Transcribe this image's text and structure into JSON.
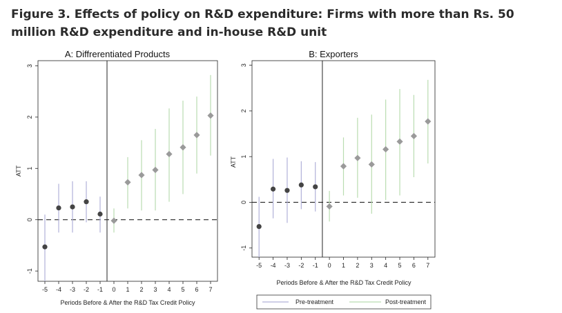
{
  "figure": {
    "title": "Figure 3. Effects of policy on R&D expenditure: Firms with more than Rs. 50 million R&D expenditure and in-house R&D unit"
  },
  "legend": {
    "pre_label": "Pre-treatment",
    "post_label": "Post-treatment",
    "pre_color": "#b0b0d8",
    "post_color": "#b9dcb0"
  },
  "chart_data": [
    {
      "type": "scatter",
      "title": "A: Diffrerentiated Products",
      "xlabel": "Periods Before & After the R&D Tax Credit Policy",
      "ylabel": "ATT",
      "x": [
        -5,
        -4,
        -3,
        -2,
        -1,
        0,
        1,
        2,
        3,
        4,
        5,
        6,
        7
      ],
      "xlim": [
        -5.5,
        7.5
      ],
      "ylim": [
        -1.2,
        3.1
      ],
      "yticks": [
        -1,
        0,
        1,
        2,
        3
      ],
      "reference_line_y": 0,
      "policy_line_x": -0.5,
      "series": [
        {
          "name": "Pre-treatment",
          "x": [
            -5,
            -4,
            -3,
            -2,
            -1
          ],
          "values": [
            -0.53,
            0.23,
            0.25,
            0.35,
            0.11
          ],
          "ci_low": [
            -1.2,
            -0.25,
            -0.25,
            -0.05,
            -0.25
          ],
          "ci_high": [
            0.1,
            0.7,
            0.75,
            0.75,
            0.45
          ]
        },
        {
          "name": "Post-treatment",
          "x": [
            0,
            1,
            2,
            3,
            4,
            5,
            6,
            7
          ],
          "values": [
            -0.02,
            0.73,
            0.87,
            0.97,
            1.28,
            1.41,
            1.65,
            2.03
          ],
          "ci_low": [
            -0.25,
            0.22,
            0.18,
            0.18,
            0.35,
            0.5,
            0.9,
            1.25
          ],
          "ci_high": [
            0.22,
            1.22,
            1.55,
            1.77,
            2.17,
            2.32,
            2.4,
            2.82
          ]
        }
      ],
      "x_tick_labels": [
        "-5",
        "-4",
        "-3",
        "-2",
        "-1",
        "0",
        "1",
        "2",
        "3",
        "4",
        "5",
        "6",
        "7"
      ],
      "y_tick_labels": [
        "-1",
        "0",
        "1",
        "2",
        "3"
      ]
    },
    {
      "type": "scatter",
      "title": "B: Exporters",
      "xlabel": "Periods Before & After the R&D Tax Credit Policy",
      "ylabel": "ATT",
      "x": [
        -5,
        -4,
        -3,
        -2,
        -1,
        0,
        1,
        2,
        3,
        4,
        5,
        6,
        7
      ],
      "xlim": [
        -5.5,
        7.5
      ],
      "ylim": [
        -1.2,
        3.1
      ],
      "yticks": [
        -1,
        0,
        1,
        2,
        3
      ],
      "reference_line_y": 0,
      "policy_line_x": -0.5,
      "series": [
        {
          "name": "Pre-treatment",
          "x": [
            -5,
            -4,
            -3,
            -2,
            -1
          ],
          "values": [
            -0.53,
            0.29,
            0.26,
            0.38,
            0.34
          ],
          "ci_low": [
            -1.2,
            -0.35,
            -0.45,
            -0.15,
            -0.2
          ],
          "ci_high": [
            0.12,
            0.95,
            0.98,
            0.9,
            0.88
          ]
        },
        {
          "name": "Post-treatment",
          "x": [
            0,
            1,
            2,
            3,
            4,
            5,
            6,
            7
          ],
          "values": [
            -0.09,
            0.79,
            0.97,
            0.83,
            1.16,
            1.33,
            1.45,
            1.77
          ],
          "ci_low": [
            -0.42,
            0.15,
            0.1,
            -0.25,
            0.05,
            0.15,
            0.55,
            0.85
          ],
          "ci_high": [
            0.25,
            1.42,
            1.85,
            1.92,
            2.25,
            2.48,
            2.35,
            2.68
          ]
        }
      ],
      "x_tick_labels": [
        "-5",
        "-4",
        "-3",
        "-2",
        "-1",
        "0",
        "1",
        "2",
        "3",
        "4",
        "5",
        "6",
        "7"
      ],
      "y_tick_labels": [
        "-1",
        "0",
        "1",
        "2",
        "3"
      ]
    }
  ]
}
